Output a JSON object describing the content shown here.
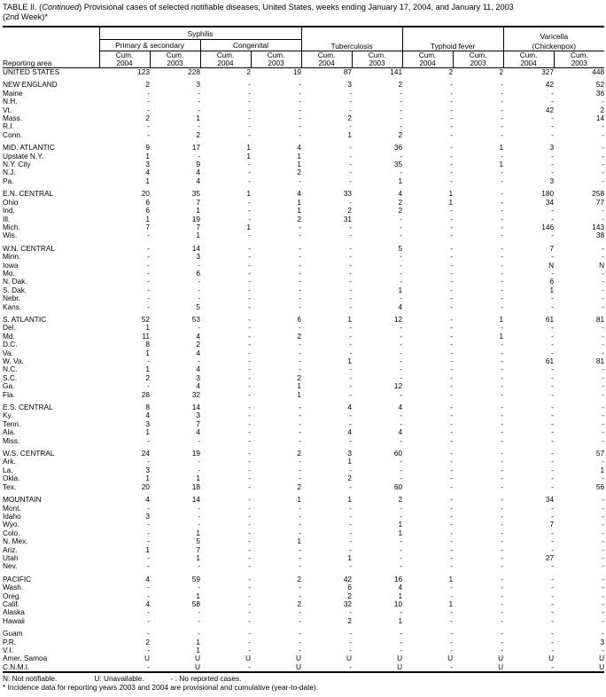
{
  "title": {
    "prefix": "TABLE II. (",
    "continued": "Continued",
    "rest": ") Provisional cases of selected notifiable diseases, United States, weeks ending January 17, 2004, and January 11, 2003",
    "line2": "(2nd Week)*"
  },
  "header": {
    "reporting_area": "Reporting area",
    "syphilis": "Syphilis",
    "primary_secondary": "Primary & secondary",
    "congenital": "Congenital",
    "tuberculosis": "Tuberculosis",
    "typhoid_fever": "Typhoid fever",
    "varicella_line1": "Varicella",
    "varicella_line2": "(Chickenpox)",
    "cum_label": "Cum.",
    "year_2004": "2004",
    "year_2003": "2003"
  },
  "table": {
    "columns": [
      "Syphilis Primary & secondary Cum. 2004",
      "Syphilis Primary & secondary Cum. 2003",
      "Syphilis Congenital Cum. 2004",
      "Syphilis Congenital Cum. 2003",
      "Tuberculosis Cum. 2004",
      "Tuberculosis Cum. 2003",
      "Typhoid fever Cum. 2004",
      "Typhoid fever Cum. 2003",
      "Varicella (Chickenpox) Cum. 2004",
      "Varicella (Chickenpox) Cum. 2003"
    ],
    "rows": [
      {
        "area": "UNITED STATES",
        "v": [
          "123",
          "228",
          "2",
          "19",
          "87",
          "141",
          "2",
          "2",
          "327",
          "448"
        ]
      },
      {
        "area": "NEW ENGLAND",
        "gap_before": true,
        "v": [
          "2",
          "3",
          "-",
          "-",
          "3",
          "2",
          "-",
          "-",
          "42",
          "52"
        ]
      },
      {
        "area": "Maine",
        "v": [
          "-",
          "-",
          "-",
          "-",
          "-",
          "-",
          "-",
          "-",
          "-",
          "36"
        ]
      },
      {
        "area": "N.H.",
        "v": [
          "-",
          "-",
          "-",
          "-",
          "-",
          "-",
          "-",
          "-",
          "-",
          "-"
        ]
      },
      {
        "area": "Vt.",
        "v": [
          "-",
          "-",
          "-",
          "-",
          "-",
          "-",
          "-",
          "-",
          "42",
          "2"
        ]
      },
      {
        "area": "Mass.",
        "v": [
          "2",
          "1",
          "-",
          "-",
          "2",
          "-",
          "-",
          "-",
          "-",
          "14"
        ]
      },
      {
        "area": "R.I.",
        "v": [
          "-",
          "-",
          "-",
          "-",
          "-",
          "-",
          "-",
          "-",
          "-",
          "-"
        ]
      },
      {
        "area": "Conn.",
        "v": [
          "-",
          "2",
          "-",
          "-",
          "1",
          "2",
          "-",
          "-",
          "-",
          "-"
        ]
      },
      {
        "area": "MID. ATLANTIC",
        "gap_before": true,
        "v": [
          "9",
          "17",
          "1",
          "4",
          "-",
          "36",
          "-",
          "1",
          "3",
          "-"
        ]
      },
      {
        "area": "Upstate N.Y.",
        "v": [
          "1",
          "-",
          "1",
          "1",
          "-",
          "-",
          "-",
          "-",
          "-",
          "-"
        ]
      },
      {
        "area": "N.Y. City",
        "v": [
          "3",
          "9",
          "-",
          "1",
          "-",
          "35",
          "-",
          "1",
          "-",
          "-"
        ]
      },
      {
        "area": "N.J.",
        "v": [
          "4",
          "4",
          "-",
          "2",
          "-",
          "-",
          "-",
          "-",
          "-",
          "-"
        ]
      },
      {
        "area": "Pa.",
        "v": [
          "1",
          "4",
          "-",
          "-",
          "-",
          "1",
          "-",
          "-",
          "3",
          "-"
        ]
      },
      {
        "area": "E.N. CENTRAL",
        "gap_before": true,
        "v": [
          "20",
          "35",
          "1",
          "4",
          "33",
          "4",
          "1",
          "-",
          "180",
          "258"
        ]
      },
      {
        "area": "Ohio",
        "v": [
          "6",
          "7",
          "-",
          "1",
          "-",
          "2",
          "1",
          "-",
          "34",
          "77"
        ]
      },
      {
        "area": "Ind.",
        "v": [
          "6",
          "1",
          "-",
          "1",
          "2",
          "2",
          "-",
          "-",
          "-",
          "-"
        ]
      },
      {
        "area": "Ill.",
        "v": [
          "1",
          "19",
          "-",
          "2",
          "31",
          "-",
          "-",
          "-",
          "-",
          "-"
        ]
      },
      {
        "area": "Mich.",
        "v": [
          "7",
          "7",
          "1",
          "-",
          "-",
          "-",
          "-",
          "-",
          "146",
          "143"
        ]
      },
      {
        "area": "Wis.",
        "v": [
          "-",
          "1",
          "-",
          "-",
          "-",
          "-",
          "-",
          "-",
          "-",
          "38"
        ]
      },
      {
        "area": "W.N. CENTRAL",
        "gap_before": true,
        "v": [
          "-",
          "14",
          "-",
          "-",
          "-",
          "5",
          "-",
          "-",
          "7",
          "-"
        ]
      },
      {
        "area": "Minn.",
        "v": [
          "-",
          "3",
          "-",
          "-",
          "-",
          "-",
          "-",
          "-",
          "-",
          "-"
        ]
      },
      {
        "area": "Iowa",
        "v": [
          "-",
          "-",
          "-",
          "-",
          "-",
          "-",
          "-",
          "-",
          "N",
          "N"
        ]
      },
      {
        "area": "Mo.",
        "v": [
          "-",
          "6",
          "-",
          "-",
          "-",
          "-",
          "-",
          "-",
          "-",
          "-"
        ]
      },
      {
        "area": "N. Dak.",
        "v": [
          "-",
          "-",
          "-",
          "-",
          "-",
          "-",
          "-",
          "-",
          "6",
          "-"
        ]
      },
      {
        "area": "S. Dak.",
        "v": [
          "-",
          "-",
          "-",
          "-",
          "-",
          "1",
          "-",
          "-",
          "1",
          "-"
        ]
      },
      {
        "area": "Nebr.",
        "v": [
          "-",
          "-",
          "-",
          "-",
          "-",
          "-",
          "-",
          "-",
          "-",
          "-"
        ]
      },
      {
        "area": "Kans.",
        "v": [
          "-",
          "5",
          "-",
          "-",
          "-",
          "4",
          "-",
          "-",
          "-",
          "-"
        ]
      },
      {
        "area": "S. ATLANTIC",
        "gap_before": true,
        "v": [
          "52",
          "53",
          "-",
          "6",
          "1",
          "12",
          "-",
          "1",
          "61",
          "81"
        ]
      },
      {
        "area": "Del.",
        "v": [
          "1",
          "-",
          "-",
          "-",
          "-",
          "-",
          "-",
          "-",
          "-",
          "-"
        ]
      },
      {
        "area": "Md.",
        "v": [
          "11",
          "4",
          "-",
          "2",
          "-",
          "-",
          "-",
          "1",
          "-",
          "-"
        ]
      },
      {
        "area": "D.C.",
        "v": [
          "8",
          "2",
          "-",
          "-",
          "-",
          "-",
          "-",
          "-",
          "-",
          "-"
        ]
      },
      {
        "area": "Va.",
        "v": [
          "1",
          "4",
          "-",
          "-",
          "-",
          "-",
          "-",
          "-",
          "-",
          "-"
        ]
      },
      {
        "area": "W. Va.",
        "v": [
          "-",
          "-",
          "-",
          "-",
          "1",
          "-",
          "-",
          "-",
          "61",
          "81"
        ]
      },
      {
        "area": "N.C.",
        "v": [
          "1",
          "4",
          "-",
          "-",
          "-",
          "-",
          "-",
          "-",
          "-",
          "-"
        ]
      },
      {
        "area": "S.C.",
        "v": [
          "2",
          "3",
          "-",
          "2",
          "-",
          "-",
          "-",
          "-",
          "-",
          "-"
        ]
      },
      {
        "area": "Ga.",
        "v": [
          "-",
          "4",
          "-",
          "1",
          "-",
          "12",
          "-",
          "-",
          "-",
          "-"
        ]
      },
      {
        "area": "Fla.",
        "v": [
          "28",
          "32",
          "-",
          "1",
          "-",
          "-",
          "-",
          "-",
          "-",
          "-"
        ]
      },
      {
        "area": "E.S. CENTRAL",
        "gap_before": true,
        "v": [
          "8",
          "14",
          "-",
          "-",
          "4",
          "4",
          "-",
          "-",
          "-",
          "-"
        ]
      },
      {
        "area": "Ky.",
        "v": [
          "4",
          "3",
          "-",
          "-",
          "-",
          "-",
          "-",
          "-",
          "-",
          "-"
        ]
      },
      {
        "area": "Tenn.",
        "v": [
          "3",
          "7",
          "-",
          "-",
          "-",
          "-",
          "-",
          "-",
          "-",
          "-"
        ]
      },
      {
        "area": "Ala.",
        "v": [
          "1",
          "4",
          "-",
          "-",
          "4",
          "4",
          "-",
          "-",
          "-",
          "-"
        ]
      },
      {
        "area": "Miss.",
        "v": [
          "-",
          "-",
          "-",
          "-",
          "-",
          "-",
          "-",
          "-",
          "-",
          "-"
        ]
      },
      {
        "area": "W.S. CENTRAL",
        "gap_before": true,
        "v": [
          "24",
          "19",
          "-",
          "2",
          "3",
          "60",
          "-",
          "-",
          "-",
          "57"
        ]
      },
      {
        "area": "Ark.",
        "v": [
          "-",
          "-",
          "-",
          "-",
          "1",
          "-",
          "-",
          "-",
          "-",
          "-"
        ]
      },
      {
        "area": "La.",
        "v": [
          "3",
          "-",
          "-",
          "-",
          "-",
          "-",
          "-",
          "-",
          "-",
          "1"
        ]
      },
      {
        "area": "Okla.",
        "v": [
          "1",
          "1",
          "-",
          "-",
          "2",
          "-",
          "-",
          "-",
          "-",
          "-"
        ]
      },
      {
        "area": "Tex.",
        "v": [
          "20",
          "18",
          "-",
          "2",
          "-",
          "60",
          "-",
          "-",
          "-",
          "56"
        ]
      },
      {
        "area": "MOUNTAIN",
        "gap_before": true,
        "v": [
          "4",
          "14",
          "-",
          "1",
          "1",
          "2",
          "-",
          "-",
          "34",
          "-"
        ]
      },
      {
        "area": "Mont.",
        "v": [
          "-",
          "-",
          "-",
          "-",
          "-",
          "-",
          "-",
          "-",
          "-",
          "-"
        ]
      },
      {
        "area": "Idaho",
        "v": [
          "3",
          "-",
          "-",
          "-",
          "-",
          "-",
          "-",
          "-",
          "-",
          "-"
        ]
      },
      {
        "area": "Wyo.",
        "v": [
          "-",
          "-",
          "-",
          "-",
          "-",
          "1",
          "-",
          "-",
          "7",
          "-"
        ]
      },
      {
        "area": "Colo.",
        "v": [
          "-",
          "1",
          "-",
          "-",
          "-",
          "1",
          "-",
          "-",
          "-",
          "-"
        ]
      },
      {
        "area": "N. Mex.",
        "v": [
          "-",
          "5",
          "-",
          "1",
          "-",
          "-",
          "-",
          "-",
          "-",
          "-"
        ]
      },
      {
        "area": "Ariz.",
        "v": [
          "1",
          "7",
          "-",
          "-",
          "-",
          "-",
          "-",
          "-",
          "-",
          "-"
        ]
      },
      {
        "area": "Utah",
        "v": [
          "-",
          "1",
          "-",
          "-",
          "1",
          "-",
          "-",
          "-",
          "27",
          "-"
        ]
      },
      {
        "area": "Nev.",
        "v": [
          "-",
          "-",
          "-",
          "-",
          "-",
          "-",
          "-",
          "-",
          "-",
          "-"
        ]
      },
      {
        "area": "PACIFIC",
        "gap_before": true,
        "v": [
          "4",
          "59",
          "-",
          "2",
          "42",
          "16",
          "1",
          "-",
          "-",
          "-"
        ]
      },
      {
        "area": "Wash.",
        "v": [
          "-",
          "-",
          "-",
          "-",
          "6",
          "4",
          "-",
          "-",
          "-",
          "-"
        ]
      },
      {
        "area": "Oreg.",
        "v": [
          "-",
          "1",
          "-",
          "-",
          "2",
          "1",
          "-",
          "-",
          "-",
          "-"
        ]
      },
      {
        "area": "Calif.",
        "v": [
          "4",
          "58",
          "-",
          "2",
          "32",
          "10",
          "1",
          "-",
          "-",
          "-"
        ]
      },
      {
        "area": "Alaska",
        "v": [
          "-",
          "-",
          "-",
          "-",
          "-",
          "-",
          "-",
          "-",
          "-",
          "-"
        ]
      },
      {
        "area": "Hawaii",
        "v": [
          "-",
          "-",
          "-",
          "-",
          "2",
          "1",
          "-",
          "-",
          "-",
          "-"
        ]
      },
      {
        "area": "Guam",
        "gap_before": true,
        "v": [
          "-",
          "-",
          "-",
          "-",
          "-",
          "-",
          "-",
          "-",
          "-",
          "-"
        ]
      },
      {
        "area": "P.R.",
        "v": [
          "2",
          "1",
          "-",
          "-",
          "-",
          "-",
          "-",
          "-",
          "-",
          "3"
        ]
      },
      {
        "area": "V.I.",
        "v": [
          "-",
          "1",
          "-",
          "-",
          "-",
          "-",
          "-",
          "-",
          "-",
          "-"
        ]
      },
      {
        "area": "Amer. Samoa",
        "v": [
          "U",
          "U",
          "U",
          "U",
          "U",
          "U",
          "U",
          "U",
          "U",
          "U"
        ]
      },
      {
        "area": "C.N.M.I.",
        "v": [
          "-",
          "U",
          "-",
          "U",
          "-",
          "U",
          "-",
          "U",
          "-",
          "U"
        ]
      }
    ]
  },
  "footnotes": {
    "n": "N: Not notifiable.",
    "u": "U: Unavailable.",
    "dash": "- : No reported cases.",
    "asterisk": "* Incidence data for reporting years 2003 and 2004 are provisional and cumulative (year-to-date)."
  }
}
